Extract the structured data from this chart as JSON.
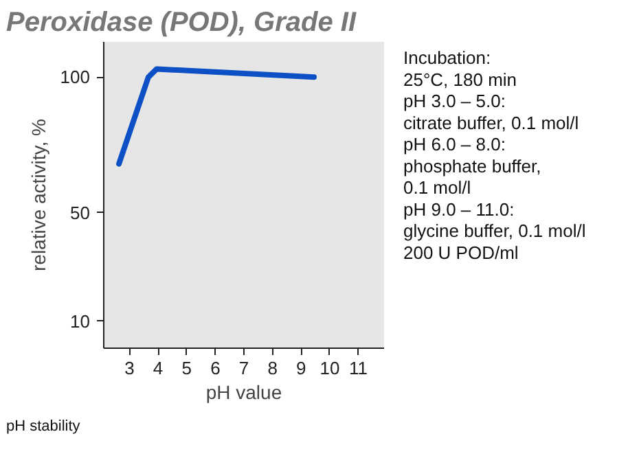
{
  "chart_data": {
    "type": "line",
    "title": "Peroxidase (POD), Grade II",
    "xlabel": "pH value",
    "ylabel": "relative activity, %",
    "x": [
      2.63,
      3.66,
      3.95,
      9.45
    ],
    "series": [
      {
        "color": "#0d4fc4",
        "values": [
          68,
          100,
          103,
          100
        ]
      }
    ],
    "xlim": [
      2.1,
      11.9
    ],
    "xticks": [
      3,
      4,
      5,
      6,
      7,
      8,
      9,
      10,
      11
    ],
    "ylim": [
      0,
      113
    ],
    "yticks": [
      10,
      50,
      100
    ],
    "marker": "none",
    "line_style": "solid",
    "annotations": [
      "Incubation:\n25°C, 180 min\npH 3.0 – 5.0:\ncitrate buffer, 0.1 mol/l\npH 6.0 – 8.0:\nphosphate buffer,\n0.1 mol/l\npH 9.0 – 11.0:\nglycine buffer, 0.1 mol/l\n200 U POD/ml",
      "pH stability"
    ]
  }
}
